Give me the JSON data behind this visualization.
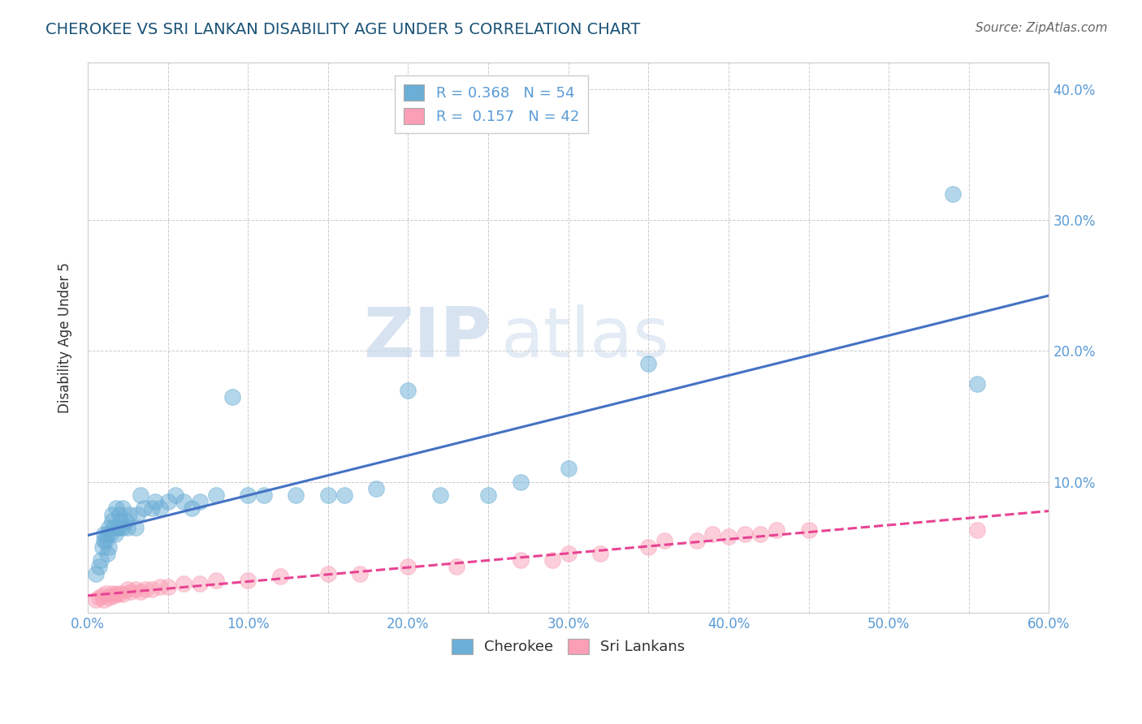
{
  "title": "CHEROKEE VS SRI LANKAN DISABILITY AGE UNDER 5 CORRELATION CHART",
  "source": "Source: ZipAtlas.com",
  "xlabel": "",
  "ylabel": "Disability Age Under 5",
  "xlim": [
    0.0,
    0.6
  ],
  "ylim": [
    0.0,
    0.42
  ],
  "xtick_labels": [
    "0.0%",
    "",
    "10.0%",
    "",
    "20.0%",
    "",
    "30.0%",
    "",
    "40.0%",
    "",
    "50.0%",
    "",
    "60.0%"
  ],
  "xtick_vals": [
    0.0,
    0.05,
    0.1,
    0.15,
    0.2,
    0.25,
    0.3,
    0.35,
    0.4,
    0.45,
    0.5,
    0.55,
    0.6
  ],
  "ytick_vals": [
    0.0,
    0.1,
    0.2,
    0.3,
    0.4
  ],
  "ytick_labels": [
    "",
    "10.0%",
    "20.0%",
    "30.0%",
    "40.0%"
  ],
  "cherokee_color": "#6baed6",
  "srilankan_color": "#fa9fb5",
  "cherokee_R": 0.368,
  "cherokee_N": 54,
  "srilankan_R": 0.157,
  "srilankan_N": 42,
  "legend_cherokee": "Cherokee",
  "legend_srilankan": "Sri Lankans",
  "watermark_zip": "ZIP",
  "watermark_atlas": "atlas",
  "cherokee_x": [
    0.005,
    0.007,
    0.008,
    0.009,
    0.01,
    0.01,
    0.011,
    0.012,
    0.012,
    0.013,
    0.013,
    0.014,
    0.015,
    0.015,
    0.016,
    0.017,
    0.018,
    0.019,
    0.02,
    0.02,
    0.021,
    0.022,
    0.022,
    0.024,
    0.025,
    0.026,
    0.03,
    0.031,
    0.033,
    0.035,
    0.04,
    0.042,
    0.045,
    0.05,
    0.055,
    0.06,
    0.065,
    0.07,
    0.08,
    0.09,
    0.1,
    0.11,
    0.13,
    0.15,
    0.16,
    0.18,
    0.2,
    0.22,
    0.25,
    0.27,
    0.3,
    0.35,
    0.54,
    0.555
  ],
  "cherokee_y": [
    0.03,
    0.035,
    0.04,
    0.05,
    0.055,
    0.06,
    0.055,
    0.045,
    0.06,
    0.05,
    0.065,
    0.06,
    0.07,
    0.075,
    0.065,
    0.06,
    0.08,
    0.065,
    0.065,
    0.075,
    0.07,
    0.065,
    0.08,
    0.07,
    0.065,
    0.075,
    0.065,
    0.075,
    0.09,
    0.08,
    0.08,
    0.085,
    0.08,
    0.085,
    0.09,
    0.085,
    0.08,
    0.085,
    0.09,
    0.165,
    0.09,
    0.09,
    0.09,
    0.09,
    0.09,
    0.095,
    0.17,
    0.09,
    0.09,
    0.1,
    0.11,
    0.19,
    0.32,
    0.175
  ],
  "srilankan_x": [
    0.005,
    0.007,
    0.009,
    0.01,
    0.011,
    0.013,
    0.015,
    0.016,
    0.018,
    0.02,
    0.022,
    0.025,
    0.027,
    0.03,
    0.033,
    0.036,
    0.04,
    0.045,
    0.05,
    0.06,
    0.07,
    0.08,
    0.1,
    0.12,
    0.15,
    0.17,
    0.2,
    0.23,
    0.27,
    0.29,
    0.3,
    0.32,
    0.35,
    0.36,
    0.38,
    0.39,
    0.4,
    0.41,
    0.42,
    0.43,
    0.45,
    0.555
  ],
  "srilankan_y": [
    0.01,
    0.012,
    0.013,
    0.01,
    0.015,
    0.012,
    0.015,
    0.013,
    0.014,
    0.015,
    0.014,
    0.018,
    0.016,
    0.018,
    0.016,
    0.018,
    0.018,
    0.02,
    0.02,
    0.022,
    0.022,
    0.025,
    0.025,
    0.028,
    0.03,
    0.03,
    0.035,
    0.035,
    0.04,
    0.04,
    0.045,
    0.045,
    0.05,
    0.055,
    0.055,
    0.06,
    0.058,
    0.06,
    0.06,
    0.063,
    0.063,
    0.063
  ],
  "title_color": "#1a5276",
  "axis_label_color": "#333333",
  "tick_color_right": "#5b9bd5",
  "tick_color_bottom": "#5b9bd5",
  "regression_cherokee_color": "#4472c4",
  "regression_srilankan_color": "#e84393",
  "background_color": "#ffffff",
  "grid_color": "#cccccc"
}
